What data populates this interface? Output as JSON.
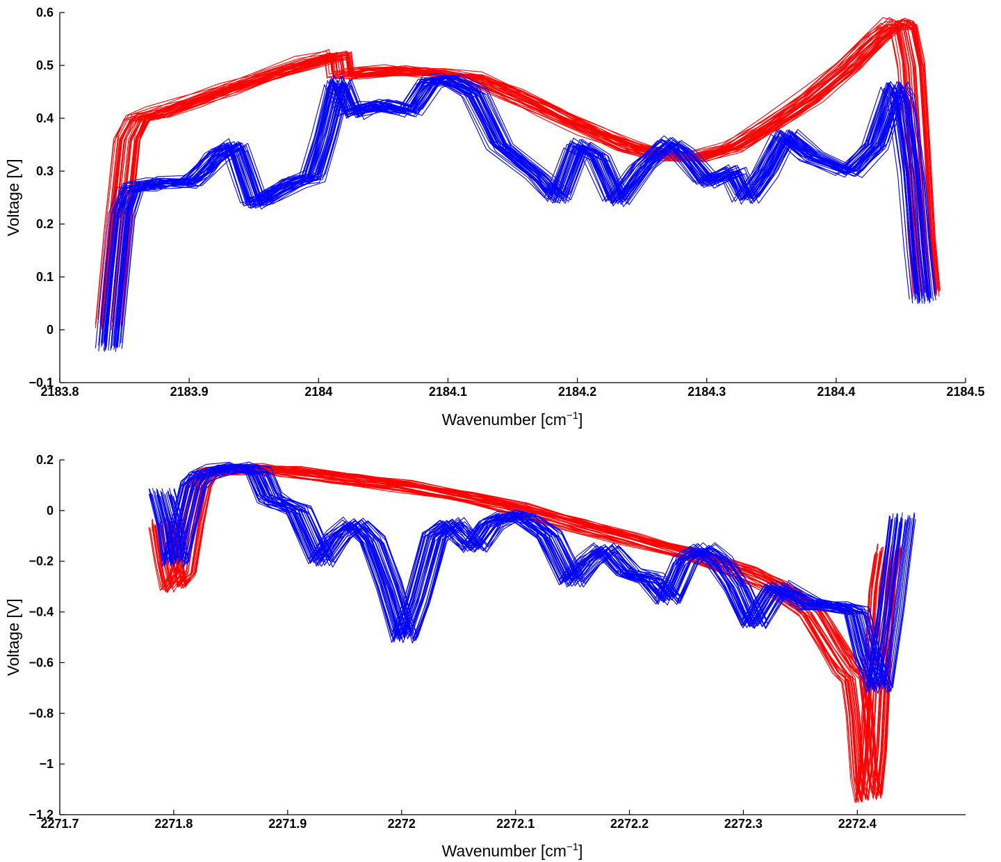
{
  "chart_data": [
    {
      "type": "line",
      "title": "",
      "xlabel_prefix": "Wavenumber [cm",
      "xlabel_sup": "−1",
      "xlabel_suffix": "]",
      "ylabel": "Voltage [V]",
      "xlim": [
        2183.8,
        2184.5
      ],
      "ylim": [
        -0.1,
        0.6
      ],
      "xticks": [
        2183.8,
        2183.9,
        2184,
        2184.1,
        2184.2,
        2184.3,
        2184.4,
        2184.5
      ],
      "xtick_labels": [
        "2183.8",
        "2183.9",
        "2184",
        "2184.1",
        "2184.2",
        "2184.3",
        "2184.4",
        "2184.5"
      ],
      "yticks": [
        -0.1,
        0,
        0.1,
        0.2,
        0.3,
        0.4,
        0.5,
        0.6
      ],
      "ytick_labels": [
        "−0.1",
        "0",
        "0.1",
        "0.2",
        "0.3",
        "0.4",
        "0.5",
        "0.6"
      ],
      "grid": false,
      "legend": "none",
      "series": [
        {
          "color": "#ff0000",
          "traces": 40,
          "x": [
            2183.838,
            2183.845,
            2183.852,
            2183.86,
            2183.875,
            2183.9,
            2183.93,
            2183.96,
            2183.99,
            2184.015,
            2184.017,
            2184.03,
            2184.06,
            2184.09,
            2184.12,
            2184.15,
            2184.18,
            2184.21,
            2184.24,
            2184.265,
            2184.29,
            2184.32,
            2184.35,
            2184.38,
            2184.41,
            2184.43,
            2184.445,
            2184.452,
            2184.458,
            2184.462,
            2184.466,
            2184.47
          ],
          "y": [
            0.01,
            0.2,
            0.36,
            0.4,
            0.41,
            0.43,
            0.455,
            0.48,
            0.505,
            0.52,
            0.48,
            0.485,
            0.49,
            0.485,
            0.475,
            0.445,
            0.41,
            0.375,
            0.345,
            0.33,
            0.325,
            0.345,
            0.39,
            0.44,
            0.5,
            0.55,
            0.58,
            0.575,
            0.5,
            0.35,
            0.18,
            0.07
          ]
        },
        {
          "color": "#0000ff",
          "traces": 40,
          "x": [
            2183.838,
            2183.843,
            2183.848,
            2183.855,
            2183.87,
            2183.88,
            2183.9,
            2183.91,
            2183.92,
            2183.935,
            2183.95,
            2183.96,
            2183.98,
            2183.995,
            2184.005,
            2184.015,
            2184.025,
            2184.035,
            2184.05,
            2184.07,
            2184.085,
            2184.1,
            2184.12,
            2184.14,
            2184.17,
            2184.185,
            2184.2,
            2184.215,
            2184.23,
            2184.25,
            2184.27,
            2184.28,
            2184.3,
            2184.32,
            2184.33,
            2184.345,
            2184.36,
            2184.38,
            2184.41,
            2184.43,
            2184.445,
            2184.45,
            2184.458,
            2184.463,
            2184.467
          ],
          "y": [
            -0.03,
            0.1,
            0.22,
            0.27,
            0.275,
            0.28,
            0.28,
            0.3,
            0.33,
            0.35,
            0.24,
            0.25,
            0.28,
            0.29,
            0.37,
            0.47,
            0.41,
            0.42,
            0.425,
            0.415,
            0.47,
            0.475,
            0.45,
            0.35,
            0.29,
            0.25,
            0.35,
            0.33,
            0.245,
            0.31,
            0.355,
            0.34,
            0.28,
            0.3,
            0.25,
            0.3,
            0.37,
            0.33,
            0.3,
            0.35,
            0.46,
            0.44,
            0.3,
            0.15,
            0.06
          ]
        }
      ]
    },
    {
      "type": "line",
      "title": "",
      "xlabel_prefix": "Wavenumber [cm",
      "xlabel_sup": "−1",
      "xlabel_suffix": "]",
      "ylabel": "Voltage [V]",
      "xlim": [
        2271.7,
        2272.495
      ],
      "ylim": [
        -1.2,
        0.2
      ],
      "xticks": [
        2271.7,
        2271.8,
        2271.9,
        2272,
        2272.1,
        2272.2,
        2272.3,
        2272.4
      ],
      "xtick_labels": [
        "2271.7",
        "2271.8",
        "2271.9",
        "2272",
        "2272.1",
        "2272.2",
        "2272.3",
        "2272.4"
      ],
      "yticks": [
        -1.2,
        -1,
        -0.8,
        -0.6,
        -0.4,
        -0.2,
        0,
        0.2
      ],
      "ytick_labels": [
        "−1.2",
        "−1",
        "−0.8",
        "−0.6",
        "−0.4",
        "−0.2",
        "0",
        "0.2"
      ],
      "grid": false,
      "legend": "none",
      "series": [
        {
          "color": "#ff0000",
          "traces": 40,
          "x": [
            2271.79,
            2271.795,
            2271.8,
            2271.808,
            2271.815,
            2271.822,
            2271.83,
            2271.85,
            2271.875,
            2271.9,
            2271.95,
            2272.0,
            2272.05,
            2272.1,
            2272.15,
            2272.2,
            2272.25,
            2272.3,
            2272.33,
            2272.36,
            2272.38,
            2272.39,
            2272.398,
            2272.402,
            2272.406,
            2272.41,
            2272.414,
            2272.418,
            2272.422,
            2272.427
          ],
          "y": [
            -0.05,
            -0.2,
            -0.3,
            -0.25,
            -0.05,
            0.1,
            0.15,
            0.16,
            0.165,
            0.155,
            0.13,
            0.1,
            0.06,
            0.01,
            -0.05,
            -0.11,
            -0.17,
            -0.24,
            -0.3,
            -0.4,
            -0.55,
            -0.62,
            -0.66,
            -0.8,
            -1.05,
            -1.13,
            -0.95,
            -0.6,
            -0.3,
            -0.15
          ]
        },
        {
          "color": "#0000ff",
          "traces": 40,
          "x": [
            2271.79,
            2271.797,
            2271.802,
            2271.81,
            2271.818,
            2271.825,
            2271.84,
            2271.86,
            2271.875,
            2271.885,
            2271.895,
            2271.91,
            2271.93,
            2271.945,
            2271.96,
            2271.975,
            2271.99,
            2272.003,
            2272.015,
            2272.03,
            2272.045,
            2272.055,
            2272.065,
            2272.08,
            2272.095,
            2272.11,
            2272.13,
            2272.15,
            2272.165,
            2272.18,
            2272.2,
            2272.22,
            2272.235,
            2272.25,
            2272.265,
            2272.28,
            2272.295,
            2272.31,
            2272.33,
            2272.36,
            2272.385,
            2272.4,
            2272.41,
            2272.42,
            2272.43,
            2272.44
          ],
          "y": [
            0.07,
            -0.05,
            -0.2,
            -0.05,
            0.1,
            0.14,
            0.16,
            0.17,
            0.15,
            0.05,
            0.03,
            0.0,
            -0.2,
            -0.1,
            -0.05,
            -0.12,
            -0.3,
            -0.5,
            -0.35,
            -0.1,
            -0.05,
            -0.1,
            -0.15,
            -0.05,
            -0.02,
            -0.03,
            -0.1,
            -0.28,
            -0.2,
            -0.15,
            -0.25,
            -0.27,
            -0.35,
            -0.2,
            -0.15,
            -0.2,
            -0.3,
            -0.45,
            -0.3,
            -0.37,
            -0.38,
            -0.4,
            -0.58,
            -0.7,
            -0.4,
            -0.03
          ]
        }
      ]
    }
  ]
}
